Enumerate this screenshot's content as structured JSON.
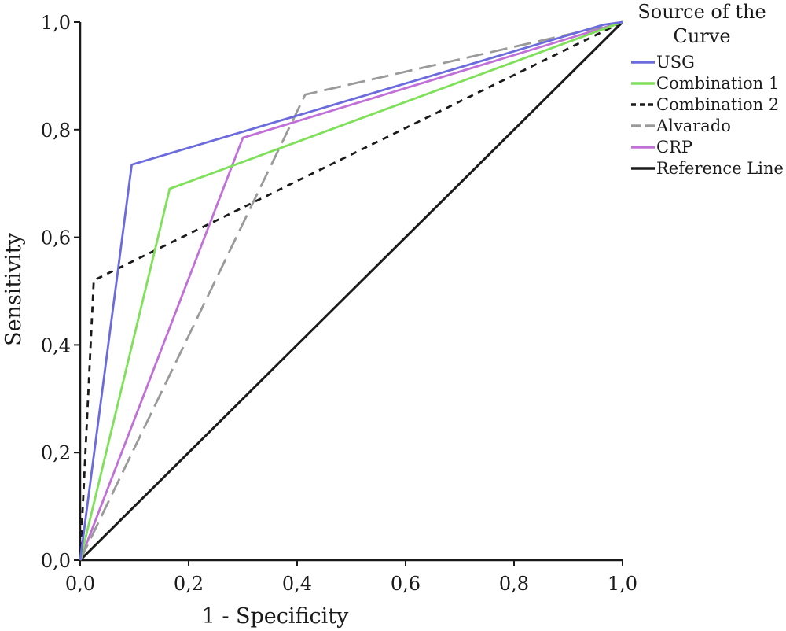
{
  "chart_data": {
    "type": "line",
    "title": "",
    "xlabel": "1 - Specificity",
    "ylabel": "Sensitivity",
    "xlim": [
      0,
      1
    ],
    "ylim": [
      0,
      1
    ],
    "x_ticks": [
      "0,0",
      "0,2",
      "0,4",
      "0,6",
      "0,8",
      "1,0"
    ],
    "y_ticks": [
      "0,0",
      "0,2",
      "0,4",
      "0,6",
      "0,8",
      "1,0"
    ],
    "grid": false,
    "legend": {
      "title": [
        "Source of the",
        "Curve"
      ],
      "placement": "top-right"
    },
    "series": [
      {
        "name": "USG",
        "color": "#6b6bdd",
        "dash": "solid",
        "x": [
          0,
          0.095,
          0.965,
          1.0
        ],
        "y": [
          0,
          0.735,
          0.995,
          1.0
        ]
      },
      {
        "name": "Combination 1",
        "color": "#7fe05a",
        "dash": "solid",
        "x": [
          0,
          0.165,
          1.0
        ],
        "y": [
          0,
          0.69,
          1.0
        ]
      },
      {
        "name": "Combination 2",
        "color": "#1a1a1a",
        "dash": "dotted",
        "x": [
          0,
          0.025,
          1.0
        ],
        "y": [
          0,
          0.52,
          1.0
        ]
      },
      {
        "name": "Alvarado",
        "color": "#9a9a9a",
        "dash": "dashed",
        "x": [
          0,
          0.415,
          1.0
        ],
        "y": [
          0,
          0.865,
          1.0
        ]
      },
      {
        "name": "CRP",
        "color": "#c070d6",
        "dash": "solid",
        "x": [
          0,
          0.3,
          1.0
        ],
        "y": [
          0,
          0.785,
          1.0
        ]
      },
      {
        "name": "Reference Line",
        "color": "#1a1a1a",
        "dash": "solid",
        "x": [
          0,
          1.0
        ],
        "y": [
          0,
          1.0
        ]
      }
    ]
  }
}
